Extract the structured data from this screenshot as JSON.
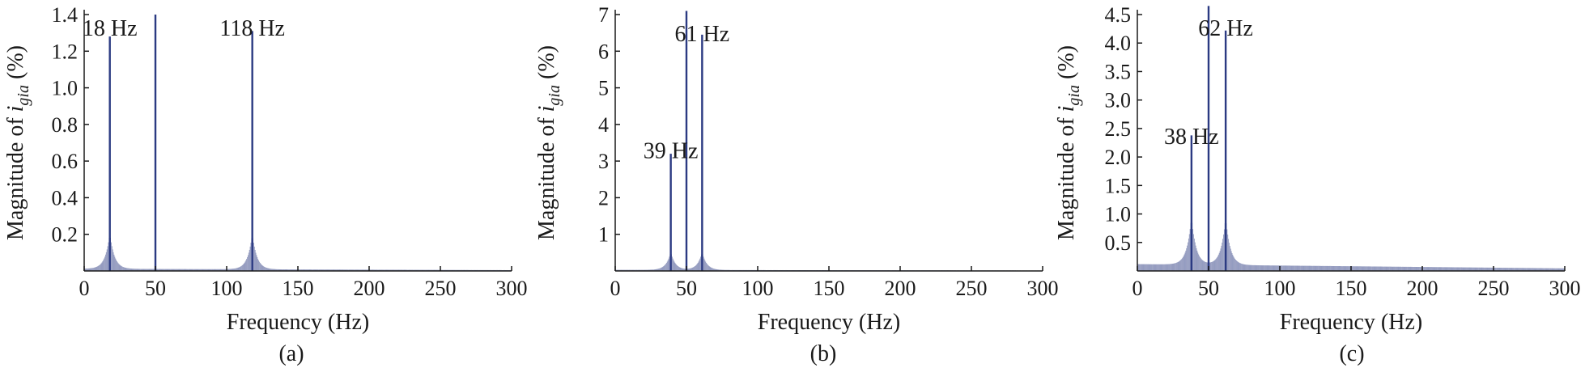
{
  "chart_data": [
    {
      "type": "bar",
      "caption": "(a)",
      "xlabel": "Frequency (Hz)",
      "ylabel_prefix": "Magnitude of ",
      "ylabel_var": "i",
      "ylabel_sub": "gia",
      "ylabel_suffix": " (%)",
      "xlim": [
        0,
        300
      ],
      "ylim": [
        0,
        1.4
      ],
      "xticks": [
        0,
        50,
        100,
        150,
        200,
        250,
        300
      ],
      "xtick_labels": [
        "0",
        "50",
        "100",
        "150",
        "200",
        "250",
        "300"
      ],
      "yticks": [
        0.2,
        0.4,
        0.6,
        0.8,
        1.0,
        1.2,
        1.4
      ],
      "ytick_labels": [
        "0.2",
        "0.4",
        "0.6",
        "0.8",
        "1.0",
        "1.2",
        "1.4"
      ],
      "color": "#2b3a82",
      "peaks": [
        {
          "f": 18,
          "mag": 1.28
        },
        {
          "f": 50,
          "mag": 1.4
        },
        {
          "f": 118,
          "mag": 1.31
        }
      ],
      "skirt": {
        "centers": [
          18,
          118
        ],
        "amp": 0.22,
        "floor": 0.012
      },
      "annotations": [
        {
          "text": "18 Hz",
          "x": 18,
          "y": 1.4
        },
        {
          "text": "118 Hz",
          "x": 118,
          "y": 1.4
        }
      ]
    },
    {
      "type": "bar",
      "caption": "(b)",
      "xlabel": "Frequency (Hz)",
      "ylabel_prefix": "Magnitude of ",
      "ylabel_var": "i",
      "ylabel_sub": "gia",
      "ylabel_suffix": " (%)",
      "xlim": [
        0,
        300
      ],
      "ylim": [
        0,
        7
      ],
      "xticks": [
        0,
        50,
        100,
        150,
        200,
        250,
        300
      ],
      "xtick_labels": [
        "0",
        "50",
        "100",
        "150",
        "200",
        "250",
        "300"
      ],
      "yticks": [
        1,
        2,
        3,
        4,
        5,
        6,
        7
      ],
      "ytick_labels": [
        "1",
        "2",
        "3",
        "4",
        "5",
        "6",
        "7"
      ],
      "color": "#2b3a82",
      "peaks": [
        {
          "f": 39,
          "mag": 3.2
        },
        {
          "f": 50,
          "mag": 7.1
        },
        {
          "f": 61,
          "mag": 6.45
        }
      ],
      "skirt": {
        "centers": [
          39,
          61
        ],
        "amp": 0.55,
        "floor": 0.03
      },
      "annotations": [
        {
          "text": "39 Hz",
          "x": 39,
          "y": 3.65
        },
        {
          "text": "61 Hz",
          "x": 61,
          "y": 6.85
        }
      ]
    },
    {
      "type": "bar",
      "caption": "(c)",
      "xlabel": "Frequency (Hz)",
      "ylabel_prefix": "Magnitude of ",
      "ylabel_var": "i",
      "ylabel_sub": "gia",
      "ylabel_suffix": " (%)",
      "xlim": [
        0,
        300
      ],
      "ylim": [
        0,
        4.5
      ],
      "xticks": [
        0,
        50,
        100,
        150,
        200,
        250,
        300
      ],
      "xtick_labels": [
        "0",
        "50",
        "100",
        "150",
        "200",
        "250",
        "300"
      ],
      "yticks": [
        0.5,
        1.0,
        1.5,
        2.0,
        2.5,
        3.0,
        3.5,
        4.0,
        4.5
      ],
      "ytick_labels": [
        "0.5",
        "1.0",
        "1.5",
        "2.0",
        "2.5",
        "3.0",
        "3.5",
        "4.0",
        "4.5"
      ],
      "color": "#2b3a82",
      "peaks": [
        {
          "f": 38,
          "mag": 2.38
        },
        {
          "f": 50,
          "mag": 4.65
        },
        {
          "f": 62,
          "mag": 4.22
        }
      ],
      "skirt": {
        "centers": [
          38,
          62
        ],
        "amp": 0.95,
        "floor": 0.12
      },
      "annotations": [
        {
          "text": "38 Hz",
          "x": 38,
          "y": 2.6
        },
        {
          "text": "62 Hz",
          "x": 62,
          "y": 4.5
        }
      ]
    }
  ]
}
